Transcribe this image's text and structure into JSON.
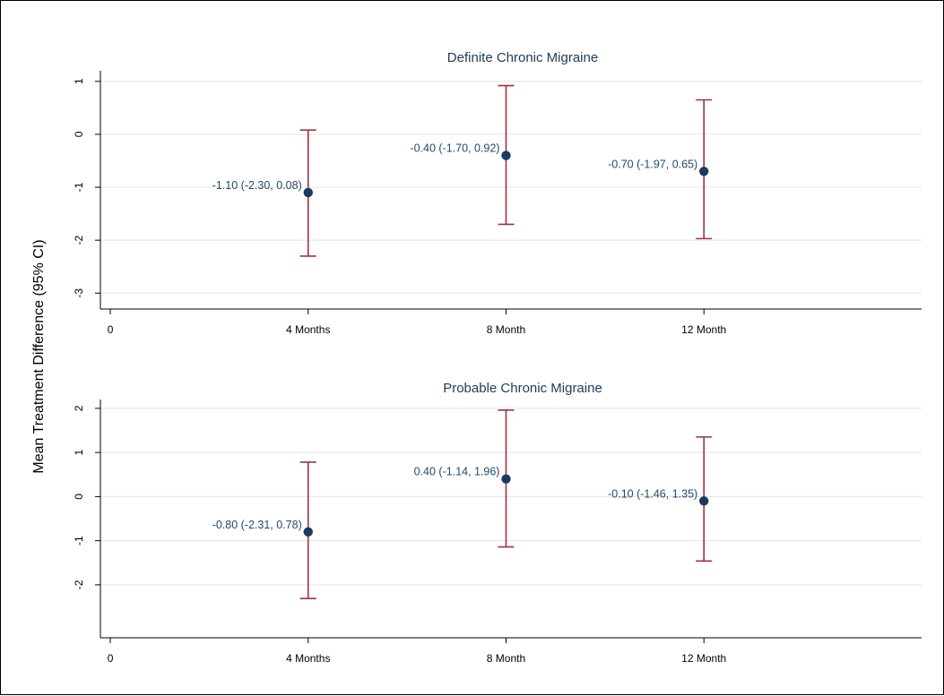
{
  "ylabel": "Mean Treatment Difference (95% CI)",
  "colors": {
    "grid": "#e8e8e8",
    "errorbar": "#a0333b",
    "point": "#1a3a5e",
    "label": "#1f4a6e",
    "title": "#1f3a5a"
  },
  "chart_data": [
    {
      "type": "scatter",
      "title": "Definite Chronic Migraine",
      "xlabel": "",
      "ylabel": "Mean Treatment Difference (95% CI)",
      "x_ticks": [
        {
          "x": 0,
          "label": "0"
        },
        {
          "x": 4,
          "label": "4 Months"
        },
        {
          "x": 8,
          "label": "8 Month"
        },
        {
          "x": 12,
          "label": "12 Month"
        }
      ],
      "xlim": [
        -0.2,
        16.4
      ],
      "y_ticks": [
        1,
        0,
        -1,
        -2,
        -3
      ],
      "ylim": [
        -3.3,
        1.2
      ],
      "grid": true,
      "points": [
        {
          "x": 4,
          "y": -1.1,
          "lo": -2.3,
          "hi": 0.08,
          "label": "-1.10 (-2.30, 0.08)"
        },
        {
          "x": 8,
          "y": -0.4,
          "lo": -1.7,
          "hi": 0.92,
          "label": "-0.40 (-1.70, 0.92)"
        },
        {
          "x": 12,
          "y": -0.7,
          "lo": -1.97,
          "hi": 0.65,
          "label": "-0.70 (-1.97, 0.65)"
        }
      ]
    },
    {
      "type": "scatter",
      "title": "Probable Chronic Migraine",
      "xlabel": "",
      "ylabel": "Mean Treatment Difference (95% CI)",
      "x_ticks": [
        {
          "x": 0,
          "label": "0"
        },
        {
          "x": 4,
          "label": "4 Months"
        },
        {
          "x": 8,
          "label": "8 Month"
        },
        {
          "x": 12,
          "label": "12 Month"
        }
      ],
      "xlim": [
        -0.2,
        16.4
      ],
      "y_ticks": [
        2,
        1,
        0,
        -1,
        -2
      ],
      "ylim": [
        -3.2,
        2.2
      ],
      "grid": true,
      "points": [
        {
          "x": 4,
          "y": -0.8,
          "lo": -2.31,
          "hi": 0.78,
          "label": "-0.80 (-2.31, 0.78)"
        },
        {
          "x": 8,
          "y": 0.4,
          "lo": -1.14,
          "hi": 1.96,
          "label": "0.40 (-1.14, 1.96)"
        },
        {
          "x": 12,
          "y": -0.1,
          "lo": -1.46,
          "hi": 1.35,
          "label": "-0.10 (-1.46, 1.35)"
        }
      ]
    }
  ]
}
